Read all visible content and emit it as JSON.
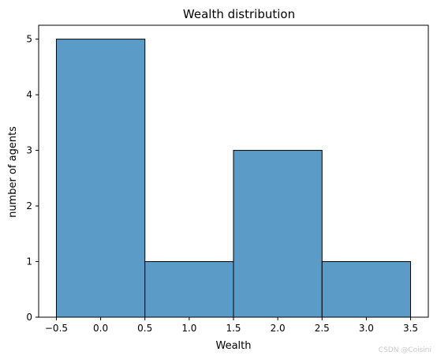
{
  "chart_data": {
    "type": "bar",
    "title": "Wealth distribution",
    "xlabel": "Wealth",
    "ylabel": "number of agents",
    "bins": [
      {
        "start": -0.5,
        "end": 0.5,
        "value": 5
      },
      {
        "start": 0.5,
        "end": 1.5,
        "value": 1
      },
      {
        "start": 1.5,
        "end": 2.5,
        "value": 3
      },
      {
        "start": 2.5,
        "end": 3.5,
        "value": 1
      }
    ],
    "xlim": [
      -0.7,
      3.7
    ],
    "ylim": [
      0,
      5.25
    ],
    "xticks": [
      -0.5,
      0.0,
      0.5,
      1.0,
      1.5,
      2.0,
      2.5,
      3.0,
      3.5
    ],
    "xtick_labels": [
      "−0.5",
      "0.0",
      "0.5",
      "1.0",
      "1.5",
      "2.0",
      "2.5",
      "3.0",
      "3.5"
    ],
    "yticks": [
      0,
      1,
      2,
      3,
      4,
      5
    ],
    "ytick_labels": [
      "0",
      "1",
      "2",
      "3",
      "4",
      "5"
    ],
    "grid": false,
    "bar_color": "#5a9bc8",
    "edge_color": "#000000"
  },
  "watermark": "CSDN @Coisini"
}
